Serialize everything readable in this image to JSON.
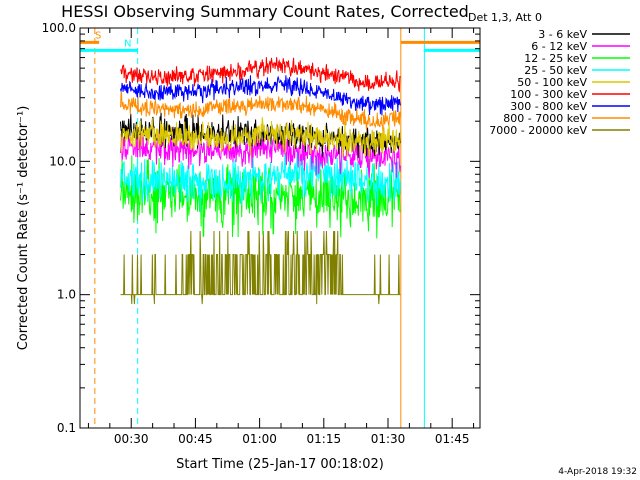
{
  "chart_data": {
    "type": "line",
    "title": "HESSI Observing Summary Count Rates, Corrected",
    "xlabel": "Start Time (25-Jan-17 00:18:02)",
    "ylabel": "Corrected Count Rate (s⁻¹ detector⁻¹)",
    "xlim_minutes": [
      18.03,
      111.5
    ],
    "ylim": [
      0.1,
      100.0
    ],
    "yscale": "log",
    "grid": false,
    "x_ticks": [
      {
        "minute": 30,
        "label": "00:30"
      },
      {
        "minute": 45,
        "label": "00:45"
      },
      {
        "minute": 60,
        "label": "01:00"
      },
      {
        "minute": 75,
        "label": "01:15"
      },
      {
        "minute": 90,
        "label": "01:30"
      },
      {
        "minute": 105,
        "label": "01:45"
      }
    ],
    "y_ticks": [
      {
        "value": 0.1,
        "label": "0.1"
      },
      {
        "value": 1.0,
        "label": "1.0"
      },
      {
        "value": 10.0,
        "label": "10.0"
      },
      {
        "value": 100.0,
        "label": "100.0"
      }
    ],
    "legend_title": "Det 1,3, Att 0",
    "legend_position": "outside-right",
    "data_start_minute": 27.5,
    "data_end_minute": 93.0,
    "series": [
      {
        "name": "3 - 6 keV",
        "color": "#000000",
        "x": [
          27.5,
          35,
          45,
          55,
          65,
          75,
          85,
          93
        ],
        "y": [
          17,
          17,
          17,
          16,
          16,
          15,
          14,
          14
        ],
        "noise": 0.08
      },
      {
        "name": "6 - 12 keV",
        "color": "#ff00ff",
        "x": [
          27.5,
          35,
          45,
          55,
          65,
          75,
          85,
          93
        ],
        "y": [
          13,
          13,
          12,
          12,
          12,
          11,
          11,
          11
        ],
        "noise": 0.09
      },
      {
        "name": "12 - 25 keV",
        "color": "#00ff00",
        "x": [
          27.5,
          35,
          45,
          55,
          65,
          75,
          85,
          93
        ],
        "y": [
          6.0,
          5.8,
          5.5,
          5.4,
          5.8,
          5.5,
          5.2,
          5.5
        ],
        "noise": 0.16
      },
      {
        "name": "25 - 50 keV",
        "color": "#00ffff",
        "x": [
          27.5,
          35,
          45,
          55,
          65,
          75,
          85,
          93
        ],
        "y": [
          7.5,
          7.2,
          7.0,
          6.8,
          8.2,
          8.0,
          7.0,
          7.2
        ],
        "noise": 0.12
      },
      {
        "name": "50 - 100 keV",
        "color": "#dcc800",
        "x": [
          27.5,
          35,
          45,
          55,
          65,
          75,
          85,
          93
        ],
        "y": [
          16,
          16,
          15,
          15,
          16,
          15,
          14,
          15
        ],
        "noise": 0.08
      },
      {
        "name": "100 - 300 keV",
        "color": "#ff0000",
        "x": [
          27.5,
          35,
          45,
          55,
          65,
          75,
          85,
          93
        ],
        "y": [
          46,
          43,
          44,
          48,
          52,
          46,
          38,
          40
        ],
        "noise": 0.05
      },
      {
        "name": "300 - 800 keV",
        "color": "#0000ff",
        "x": [
          27.5,
          35,
          45,
          55,
          65,
          75,
          85,
          93
        ],
        "y": [
          36,
          33,
          33,
          36,
          38,
          32,
          26,
          27
        ],
        "noise": 0.05
      },
      {
        "name": "800 - 7000 keV",
        "color": "#ff8c00",
        "x": [
          27.5,
          35,
          45,
          55,
          65,
          75,
          85,
          93
        ],
        "y": [
          27,
          25,
          24,
          26,
          28,
          24,
          20,
          21
        ],
        "noise": 0.05
      },
      {
        "name": "7000 - 20000 keV",
        "color": "#808000",
        "x": [
          27.5,
          35,
          45,
          55,
          65,
          75,
          85,
          93
        ],
        "y": [
          1,
          1,
          1,
          1.2,
          1.3,
          1.2,
          1.1,
          1
        ],
        "noise": 0.25,
        "quantized": true
      }
    ],
    "flag_intervals": [
      {
        "label": "S",
        "color": "#ff8c00",
        "start": 18.03,
        "end": 22.5,
        "level_value": 78
      },
      {
        "label": "N",
        "color": "#00ffff",
        "start": 18.03,
        "end": 31.5,
        "level_value": 68
      },
      {
        "label": "",
        "color": "#ff8c00",
        "start": 93.0,
        "end": 111.5,
        "level_value": 78
      },
      {
        "label": "",
        "color": "#00ffff",
        "start": 98.5,
        "end": 111.5,
        "level_value": 68
      }
    ],
    "event_lines": [
      {
        "minute": 18.03,
        "color": "#00ffff",
        "dashed": false
      },
      {
        "minute": 21.5,
        "color": "#ff8c00",
        "dashed": true
      },
      {
        "minute": 31.5,
        "color": "#00ffff",
        "dashed": true
      },
      {
        "minute": 93.0,
        "color": "#ff8c00",
        "dashed": false
      },
      {
        "minute": 98.5,
        "color": "#00ffff",
        "dashed": false
      },
      {
        "minute": 111.5,
        "color": "#00ffff",
        "dashed": true
      }
    ]
  },
  "timestamp": "4-Apr-2018 19:32"
}
